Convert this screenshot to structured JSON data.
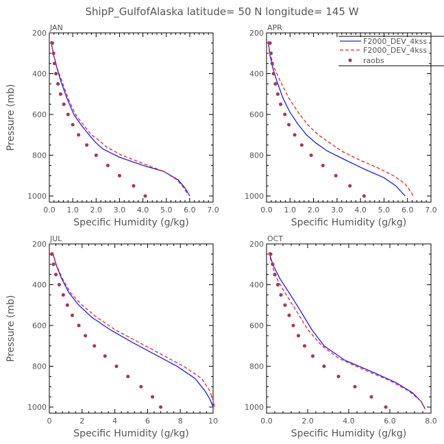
{
  "figure_title": "ShipP_GulfofAlaska  latitude= 50 N longitude= 145 W",
  "colors": {
    "blue_line": "#1a1aff",
    "red_dash": "#ee2222",
    "raobs_dot": "#a33a5a",
    "frame": "#000000",
    "text": "#555555"
  },
  "legend": {
    "entries": [
      {
        "label": "F2000_DEV_4kss",
        "style": "solid",
        "color": "#1a1aff"
      },
      {
        "label": "F2000_DEV_4kss",
        "style": "dashed",
        "color": "#ee2222"
      },
      {
        "label": "raobs",
        "style": "dots",
        "color": "#a33a5a"
      }
    ]
  },
  "chart_data": [
    {
      "type": "line",
      "panel": "JAN",
      "xlabel": "Specific Humidity (g/kg)",
      "ylabel": "Pressure (mb)",
      "xlim": [
        0,
        7
      ],
      "ylim": [
        1030,
        200
      ],
      "xticks": [
        0,
        1,
        2,
        3,
        4,
        5,
        6,
        7
      ],
      "xtick_labels": [
        "0.0",
        "1.0",
        "2.0",
        "3.0",
        "4.0",
        "5.0",
        "6.0",
        "7.0"
      ],
      "yticks": [
        200,
        400,
        600,
        800,
        1000
      ],
      "ytick_labels": [
        "200",
        "400",
        "600",
        "800",
        "1000"
      ],
      "series": [
        {
          "name": "F2000_DEV_4kss",
          "style": "solid",
          "points": [
            [
              0.07,
              240
            ],
            [
              0.17,
              300
            ],
            [
              0.32,
              370
            ],
            [
              0.5,
              440
            ],
            [
              0.75,
              520
            ],
            [
              1.05,
              600
            ],
            [
              1.35,
              650
            ],
            [
              1.7,
              700
            ],
            [
              2.0,
              740
            ],
            [
              2.3,
              770
            ],
            [
              3.0,
              810
            ],
            [
              4.0,
              850
            ],
            [
              4.9,
              880
            ],
            [
              5.5,
              920
            ],
            [
              5.8,
              960
            ],
            [
              6.0,
              1000
            ]
          ]
        },
        {
          "name": "F2000_DEV_4kss",
          "style": "dashed",
          "points": [
            [
              0.07,
              240
            ],
            [
              0.17,
              300
            ],
            [
              0.33,
              370
            ],
            [
              0.55,
              440
            ],
            [
              0.8,
              520
            ],
            [
              1.12,
              600
            ],
            [
              1.45,
              650
            ],
            [
              1.8,
              700
            ],
            [
              2.15,
              730
            ],
            [
              2.45,
              760
            ],
            [
              3.1,
              800
            ],
            [
              4.0,
              840
            ],
            [
              4.9,
              880
            ],
            [
              5.45,
              920
            ],
            [
              5.75,
              960
            ],
            [
              5.9,
              990
            ]
          ]
        },
        {
          "name": "raobs",
          "style": "dots",
          "points": [
            [
              0.13,
              250
            ],
            [
              0.18,
              300
            ],
            [
              0.22,
              350
            ],
            [
              0.28,
              400
            ],
            [
              0.37,
              450
            ],
            [
              0.48,
              500
            ],
            [
              0.62,
              550
            ],
            [
              0.8,
              600
            ],
            [
              1.0,
              650
            ],
            [
              1.25,
              700
            ],
            [
              1.6,
              750
            ],
            [
              2.0,
              800
            ],
            [
              2.5,
              850
            ],
            [
              3.0,
              900
            ],
            [
              3.6,
              950
            ],
            [
              4.1,
              1000
            ]
          ]
        }
      ]
    },
    {
      "type": "line",
      "panel": "APR",
      "xlabel": "Specific Humidity (g/kg)",
      "ylabel": "",
      "xlim": [
        0,
        7
      ],
      "ylim": [
        1030,
        200
      ],
      "xticks": [
        0,
        1,
        2,
        3,
        4,
        5,
        6,
        7
      ],
      "xtick_labels": [
        "0.0",
        "1.0",
        "2.0",
        "3.0",
        "4.0",
        "5.0",
        "6.0",
        "7.0"
      ],
      "yticks": [
        200,
        400,
        600,
        800,
        1000
      ],
      "ytick_labels": [
        "200",
        "400",
        "600",
        "800",
        "1000"
      ],
      "series": [
        {
          "name": "F2000_DEV_4kss",
          "style": "solid",
          "points": [
            [
              0.07,
              240
            ],
            [
              0.13,
              300
            ],
            [
              0.26,
              370
            ],
            [
              0.45,
              440
            ],
            [
              0.7,
              520
            ],
            [
              1.0,
              590
            ],
            [
              1.35,
              650
            ],
            [
              1.7,
              700
            ],
            [
              2.1,
              740
            ],
            [
              2.6,
              780
            ],
            [
              3.3,
              820
            ],
            [
              4.2,
              870
            ],
            [
              5.0,
              910
            ],
            [
              5.5,
              950
            ],
            [
              5.9,
              1000
            ]
          ]
        },
        {
          "name": "F2000_DEV_4kss",
          "style": "dashed",
          "points": [
            [
              0.07,
              240
            ],
            [
              0.15,
              300
            ],
            [
              0.32,
              370
            ],
            [
              0.6,
              440
            ],
            [
              0.95,
              520
            ],
            [
              1.35,
              590
            ],
            [
              1.75,
              650
            ],
            [
              2.2,
              700
            ],
            [
              2.7,
              740
            ],
            [
              3.2,
              780
            ],
            [
              3.9,
              820
            ],
            [
              4.7,
              860
            ],
            [
              5.4,
              900
            ],
            [
              5.9,
              940
            ],
            [
              6.2,
              990
            ],
            [
              6.25,
              1005
            ]
          ]
        },
        {
          "name": "raobs",
          "style": "dots",
          "points": [
            [
              0.15,
              250
            ],
            [
              0.19,
              300
            ],
            [
              0.24,
              350
            ],
            [
              0.3,
              400
            ],
            [
              0.38,
              450
            ],
            [
              0.48,
              500
            ],
            [
              0.6,
              550
            ],
            [
              0.78,
              600
            ],
            [
              0.95,
              650
            ],
            [
              1.2,
              700
            ],
            [
              1.5,
              750
            ],
            [
              1.9,
              800
            ],
            [
              2.4,
              850
            ],
            [
              2.95,
              900
            ],
            [
              3.55,
              950
            ],
            [
              4.15,
              1000
            ]
          ]
        }
      ]
    },
    {
      "type": "line",
      "panel": "JUL",
      "xlabel": "Specific Humidity (g/kg)",
      "ylabel": "Pressure (mb)",
      "xlim": [
        0,
        10
      ],
      "ylim": [
        1030,
        200
      ],
      "xticks": [
        0,
        2,
        4,
        6,
        8,
        10
      ],
      "xtick_labels": [
        "0",
        "2",
        "4",
        "6",
        "8",
        "10"
      ],
      "yticks": [
        200,
        400,
        600,
        800,
        1000
      ],
      "ytick_labels": [
        "200",
        "400",
        "600",
        "800",
        "1000"
      ],
      "series": [
        {
          "name": "F2000_DEV_4kss",
          "style": "solid",
          "points": [
            [
              0.2,
              240
            ],
            [
              0.4,
              300
            ],
            [
              0.75,
              370
            ],
            [
              1.2,
              440
            ],
            [
              1.8,
              500
            ],
            [
              2.6,
              560
            ],
            [
              3.7,
              620
            ],
            [
              5.0,
              680
            ],
            [
              6.4,
              740
            ],
            [
              7.8,
              800
            ],
            [
              8.9,
              860
            ],
            [
              9.5,
              920
            ],
            [
              9.8,
              960
            ],
            [
              10.0,
              1000
            ]
          ]
        },
        {
          "name": "F2000_DEV_4kss",
          "style": "dashed",
          "points": [
            [
              0.2,
              240
            ],
            [
              0.42,
              300
            ],
            [
              0.8,
              370
            ],
            [
              1.3,
              440
            ],
            [
              2.0,
              500
            ],
            [
              2.9,
              560
            ],
            [
              4.0,
              620
            ],
            [
              5.4,
              680
            ],
            [
              6.8,
              740
            ],
            [
              8.2,
              800
            ],
            [
              9.3,
              860
            ],
            [
              9.8,
              920
            ],
            [
              10.05,
              980
            ],
            [
              10.1,
              1010
            ]
          ]
        },
        {
          "name": "raobs",
          "style": "dots",
          "points": [
            [
              0.15,
              250
            ],
            [
              0.25,
              300
            ],
            [
              0.4,
              350
            ],
            [
              0.6,
              400
            ],
            [
              0.85,
              450
            ],
            [
              1.1,
              500
            ],
            [
              1.4,
              550
            ],
            [
              1.8,
              600
            ],
            [
              2.2,
              650
            ],
            [
              2.75,
              700
            ],
            [
              3.4,
              750
            ],
            [
              4.1,
              800
            ],
            [
              4.8,
              850
            ],
            [
              5.6,
              900
            ],
            [
              6.3,
              950
            ],
            [
              6.8,
              1000
            ]
          ]
        }
      ]
    },
    {
      "type": "line",
      "panel": "OCT",
      "xlabel": "Specific Humidity (g/kg)",
      "ylabel": "",
      "xlim": [
        0,
        8
      ],
      "ylim": [
        1030,
        200
      ],
      "xticks": [
        0,
        2,
        4,
        6,
        8
      ],
      "xtick_labels": [
        "0.0",
        "2.0",
        "4.0",
        "6.0",
        "8.0"
      ],
      "yticks": [
        200,
        400,
        600,
        800,
        1000
      ],
      "ytick_labels": [
        "200",
        "400",
        "600",
        "800",
        "1000"
      ],
      "series": [
        {
          "name": "F2000_DEV_4kss",
          "style": "solid",
          "points": [
            [
              0.12,
              240
            ],
            [
              0.3,
              300
            ],
            [
              0.65,
              370
            ],
            [
              1.1,
              440
            ],
            [
              1.6,
              520
            ],
            [
              2.2,
              620
            ],
            [
              2.8,
              700
            ],
            [
              3.8,
              770
            ],
            [
              5.2,
              830
            ],
            [
              6.3,
              880
            ],
            [
              7.1,
              930
            ],
            [
              7.5,
              970
            ],
            [
              7.7,
              1005
            ]
          ]
        },
        {
          "name": "F2000_DEV_4kss",
          "style": "dashed",
          "points": [
            [
              0.12,
              240
            ],
            [
              0.25,
              300
            ],
            [
              0.5,
              370
            ],
            [
              0.9,
              440
            ],
            [
              1.4,
              520
            ],
            [
              2.0,
              620
            ],
            [
              2.7,
              700
            ],
            [
              3.5,
              760
            ],
            [
              4.8,
              820
            ],
            [
              6.0,
              870
            ],
            [
              6.9,
              920
            ],
            [
              7.5,
              970
            ],
            [
              7.7,
              1010
            ]
          ]
        },
        {
          "name": "raobs",
          "style": "dots",
          "points": [
            [
              0.2,
              250
            ],
            [
              0.3,
              300
            ],
            [
              0.4,
              350
            ],
            [
              0.55,
              400
            ],
            [
              0.7,
              450
            ],
            [
              0.9,
              500
            ],
            [
              1.1,
              550
            ],
            [
              1.3,
              600
            ],
            [
              1.55,
              650
            ],
            [
              1.85,
              700
            ],
            [
              2.25,
              750
            ],
            [
              2.8,
              800
            ],
            [
              3.5,
              850
            ],
            [
              4.3,
              900
            ],
            [
              5.1,
              950
            ],
            [
              5.8,
              1000
            ]
          ]
        }
      ]
    }
  ]
}
